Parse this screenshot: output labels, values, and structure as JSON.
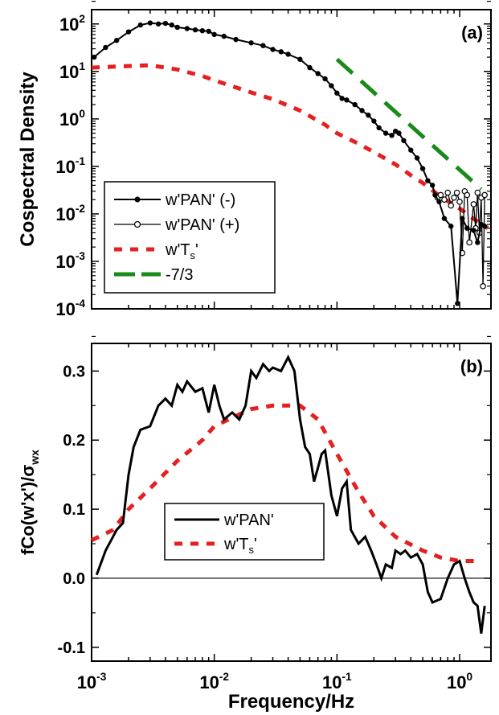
{
  "chart_data": [
    {
      "panel_label": "(a)",
      "type": "line",
      "x_scale": "log",
      "y_scale": "log",
      "xlim": [
        0.001,
        1.8
      ],
      "ylim": [
        0.0001,
        200
      ],
      "ylabel": "Cospectral Density",
      "y_ticks": [
        {
          "value": 0.0001,
          "base": "10",
          "exp": "-4"
        },
        {
          "value": 0.001,
          "base": "10",
          "exp": "-3"
        },
        {
          "value": 0.01,
          "base": "10",
          "exp": "-2"
        },
        {
          "value": 0.1,
          "base": "10",
          "exp": "-1"
        },
        {
          "value": 1,
          "base": "10",
          "exp": "0"
        },
        {
          "value": 10,
          "base": "10",
          "exp": "1"
        },
        {
          "value": 100,
          "base": "10",
          "exp": "2"
        }
      ],
      "legend_position": "bottom-left",
      "series": [
        {
          "name": "w'PAN' (-)",
          "color": "#000000",
          "style": "solid-filled-markers",
          "points": [
            [
              0.00105,
              20
            ],
            [
              0.0013,
              32
            ],
            [
              0.0016,
              45
            ],
            [
              0.002,
              68
            ],
            [
              0.0025,
              95
            ],
            [
              0.003,
              105
            ],
            [
              0.0035,
              100
            ],
            [
              0.004,
              103
            ],
            [
              0.0045,
              95
            ],
            [
              0.005,
              85
            ],
            [
              0.006,
              80
            ],
            [
              0.007,
              75
            ],
            [
              0.008,
              72
            ],
            [
              0.009,
              70
            ],
            [
              0.01,
              60
            ],
            [
              0.012,
              55
            ],
            [
              0.015,
              47
            ],
            [
              0.02,
              40
            ],
            [
              0.025,
              35
            ],
            [
              0.03,
              29
            ],
            [
              0.035,
              26
            ],
            [
              0.04,
              23
            ],
            [
              0.05,
              18
            ],
            [
              0.06,
              12
            ],
            [
              0.07,
              9
            ],
            [
              0.08,
              7
            ],
            [
              0.09,
              5
            ],
            [
              0.1,
              3.5
            ],
            [
              0.11,
              2.7
            ],
            [
              0.12,
              2.5
            ],
            [
              0.14,
              2.0
            ],
            [
              0.16,
              1.5
            ],
            [
              0.18,
              1.2
            ],
            [
              0.2,
              0.9
            ],
            [
              0.22,
              0.65
            ],
            [
              0.25,
              0.5
            ],
            [
              0.28,
              0.45
            ],
            [
              0.3,
              0.55
            ],
            [
              0.32,
              0.5
            ],
            [
              0.35,
              0.35
            ],
            [
              0.4,
              0.22
            ],
            [
              0.45,
              0.15
            ],
            [
              0.5,
              0.09
            ],
            [
              0.55,
              0.05
            ],
            [
              0.6,
              0.04
            ],
            [
              0.63,
              0.025
            ],
            [
              0.68,
              0.018
            ],
            [
              0.75,
              0.008
            ],
            [
              0.85,
              0.0055
            ],
            [
              0.96,
              0.00013
            ],
            [
              1.05,
              0.008
            ],
            [
              1.15,
              0.005
            ],
            [
              1.3,
              0.0045
            ],
            [
              1.4,
              0.0025
            ],
            [
              1.5,
              0.006
            ],
            [
              1.6,
              0.0055
            ]
          ]
        },
        {
          "name": "w'PAN' (+)",
          "color": "#000000",
          "style": "solid-open-markers",
          "points": [
            [
              0.66,
              0.022
            ],
            [
              0.7,
              0.025
            ],
            [
              0.75,
              0.02
            ],
            [
              0.8,
              0.028
            ],
            [
              0.85,
              0.015
            ],
            [
              0.9,
              0.022
            ],
            [
              0.95,
              0.028
            ],
            [
              1.0,
              0.018
            ],
            [
              1.05,
              0.0015
            ],
            [
              1.1,
              0.03
            ],
            [
              1.15,
              0.025
            ],
            [
              1.2,
              0.0025
            ],
            [
              1.3,
              0.016
            ],
            [
              1.35,
              0.005
            ],
            [
              1.4,
              0.028
            ],
            [
              1.45,
              0.004
            ],
            [
              1.5,
              0.022
            ],
            [
              1.55,
              0.0003
            ],
            [
              1.6,
              0.025
            ]
          ]
        },
        {
          "name": "w'T_s'",
          "color": "#e52020",
          "style": "dashed",
          "points": [
            [
              0.001,
              12
            ],
            [
              0.002,
              13
            ],
            [
              0.003,
              13.5
            ],
            [
              0.005,
              11
            ],
            [
              0.008,
              8
            ],
            [
              0.01,
              6.5
            ],
            [
              0.02,
              3.6
            ],
            [
              0.03,
              2.6
            ],
            [
              0.05,
              1.5
            ],
            [
              0.08,
              0.75
            ],
            [
              0.1,
              0.5
            ],
            [
              0.15,
              0.3
            ],
            [
              0.2,
              0.2
            ],
            [
              0.3,
              0.11
            ],
            [
              0.4,
              0.065
            ],
            [
              0.5,
              0.045
            ],
            [
              0.7,
              0.023
            ],
            [
              1.0,
              0.013
            ],
            [
              1.5,
              0.006
            ],
            [
              1.7,
              0.005
            ]
          ]
        },
        {
          "name": "-7/3",
          "color": "#1a8a1a",
          "style": "long-dash",
          "points": [
            [
              0.1,
              18
            ],
            [
              1.5,
              0.0332
            ]
          ]
        }
      ]
    },
    {
      "panel_label": "(b)",
      "type": "line",
      "x_scale": "log",
      "xlim": [
        0.001,
        1.8
      ],
      "ylim": [
        -0.12,
        0.34
      ],
      "xlabel": "Frequency/Hz",
      "ylabel": "fCo(w'x')/σ",
      "ylabel_subscript": "wx",
      "y_ticks": [
        {
          "value": -0.1,
          "label": "-0.1"
        },
        {
          "value": 0.0,
          "label": "0.0"
        },
        {
          "value": 0.1,
          "label": "0.1"
        },
        {
          "value": 0.2,
          "label": "0.2"
        },
        {
          "value": 0.3,
          "label": "0.3"
        }
      ],
      "x_ticks": [
        {
          "value": 0.001,
          "base": "10",
          "exp": "-3"
        },
        {
          "value": 0.01,
          "base": "10",
          "exp": "-2"
        },
        {
          "value": 0.1,
          "base": "10",
          "exp": "-1"
        },
        {
          "value": 1,
          "base": "10",
          "exp": "0"
        }
      ],
      "zero_line": true,
      "legend_position": "bottom-center",
      "series": [
        {
          "name": "w'PAN'",
          "color": "#000000",
          "style": "solid",
          "points": [
            [
              0.0011,
              0.005
            ],
            [
              0.0013,
              0.04
            ],
            [
              0.0016,
              0.07
            ],
            [
              0.0018,
              0.08
            ],
            [
              0.002,
              0.15
            ],
            [
              0.0022,
              0.19
            ],
            [
              0.0025,
              0.215
            ],
            [
              0.003,
              0.22
            ],
            [
              0.0035,
              0.25
            ],
            [
              0.004,
              0.26
            ],
            [
              0.0045,
              0.25
            ],
            [
              0.005,
              0.28
            ],
            [
              0.0055,
              0.27
            ],
            [
              0.006,
              0.285
            ],
            [
              0.007,
              0.27
            ],
            [
              0.008,
              0.275
            ],
            [
              0.009,
              0.24
            ],
            [
              0.01,
              0.28
            ],
            [
              0.011,
              0.25
            ],
            [
              0.012,
              0.23
            ],
            [
              0.014,
              0.24
            ],
            [
              0.016,
              0.23
            ],
            [
              0.018,
              0.25
            ],
            [
              0.02,
              0.3
            ],
            [
              0.022,
              0.29
            ],
            [
              0.025,
              0.31
            ],
            [
              0.028,
              0.3
            ],
            [
              0.03,
              0.305
            ],
            [
              0.035,
              0.3
            ],
            [
              0.04,
              0.32
            ],
            [
              0.045,
              0.3
            ],
            [
              0.05,
              0.23
            ],
            [
              0.055,
              0.19
            ],
            [
              0.06,
              0.18
            ],
            [
              0.065,
              0.14
            ],
            [
              0.07,
              0.16
            ],
            [
              0.075,
              0.18
            ],
            [
              0.08,
              0.185
            ],
            [
              0.09,
              0.12
            ],
            [
              0.1,
              0.09
            ],
            [
              0.11,
              0.13
            ],
            [
              0.12,
              0.14
            ],
            [
              0.13,
              0.07
            ],
            [
              0.15,
              0.05
            ],
            [
              0.17,
              0.06
            ],
            [
              0.19,
              0.04
            ],
            [
              0.21,
              0.02
            ],
            [
              0.23,
              0.0
            ],
            [
              0.25,
              0.02
            ],
            [
              0.28,
              0.015
            ],
            [
              0.3,
              0.04
            ],
            [
              0.33,
              0.035
            ],
            [
              0.36,
              0.04
            ],
            [
              0.4,
              0.03
            ],
            [
              0.45,
              0.035
            ],
            [
              0.5,
              0.02
            ],
            [
              0.55,
              -0.02
            ],
            [
              0.6,
              -0.035
            ],
            [
              0.7,
              -0.03
            ],
            [
              0.8,
              0.0
            ],
            [
              0.9,
              0.02
            ],
            [
              1.0,
              0.025
            ],
            [
              1.1,
              0.0
            ],
            [
              1.2,
              -0.02
            ],
            [
              1.3,
              -0.035
            ],
            [
              1.4,
              -0.04
            ],
            [
              1.5,
              -0.08
            ],
            [
              1.6,
              -0.04
            ]
          ]
        },
        {
          "name": "w'T_s'",
          "color": "#e52020",
          "style": "dashed",
          "points": [
            [
              0.001,
              0.055
            ],
            [
              0.0015,
              0.07
            ],
            [
              0.002,
              0.1
            ],
            [
              0.003,
              0.13
            ],
            [
              0.005,
              0.17
            ],
            [
              0.008,
              0.2
            ],
            [
              0.01,
              0.22
            ],
            [
              0.015,
              0.235
            ],
            [
              0.02,
              0.245
            ],
            [
              0.03,
              0.25
            ],
            [
              0.05,
              0.25
            ],
            [
              0.07,
              0.23
            ],
            [
              0.1,
              0.18
            ],
            [
              0.15,
              0.125
            ],
            [
              0.2,
              0.09
            ],
            [
              0.3,
              0.06
            ],
            [
              0.5,
              0.04
            ],
            [
              0.7,
              0.03
            ],
            [
              1.0,
              0.025
            ],
            [
              1.5,
              0.025
            ]
          ]
        }
      ]
    }
  ],
  "legends": [
    {
      "items": [
        {
          "text": "w'PAN' (-)"
        },
        {
          "text": "w'PAN' (+)"
        },
        {
          "text": "w'T",
          "sub": "s",
          "tail": "'"
        },
        {
          "text": "-7/3"
        }
      ]
    },
    {
      "items": [
        {
          "text": "w'PAN'"
        },
        {
          "text": "w'T",
          "sub": "s",
          "tail": "'"
        }
      ]
    }
  ]
}
